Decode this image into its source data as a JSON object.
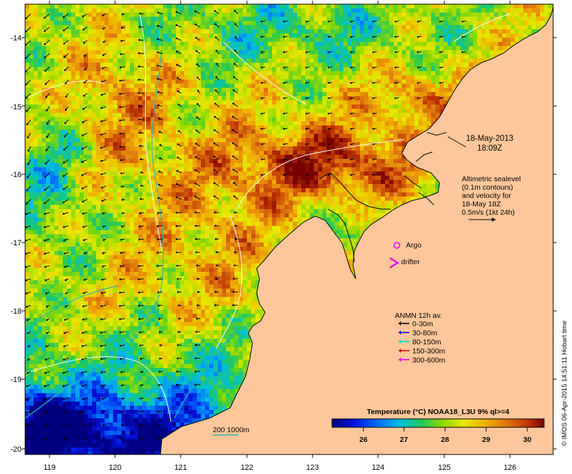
{
  "map": {
    "lon_ticks": [
      "119",
      "120",
      "121",
      "122",
      "123",
      "124",
      "125",
      "126"
    ],
    "lat_ticks": [
      "-14",
      "-15",
      "-16",
      "-17",
      "-18",
      "-19",
      "-20"
    ]
  },
  "date": {
    "line1": "18-May-2013",
    "line2": "18:09Z"
  },
  "altimetry": {
    "lines": [
      "Altimetric sealevel",
      "(0.1m contours)",
      "and velocity for",
      "18-May 18Z",
      "0.5m/s (1kt 24h)"
    ]
  },
  "markers": {
    "argo": "Argo",
    "drifter": "drifter"
  },
  "anmn": {
    "title": "ANMN 12h av.",
    "items": [
      {
        "label": "0-30m",
        "color": "#000000"
      },
      {
        "label": "30-80m",
        "color": "#0000ee"
      },
      {
        "label": "80-150m",
        "color": "#00d8d8"
      },
      {
        "label": "150-300m",
        "color": "#ee0000"
      },
      {
        "label": "300-600m",
        "color": "#ee00ee"
      }
    ]
  },
  "isobath": {
    "label": "200  1000m"
  },
  "colorbar": {
    "title": "Temperature (°C) NOAA18_L3U 9% ql>=4",
    "ticks": [
      "26",
      "27",
      "28",
      "29",
      "30"
    ],
    "range": [
      25,
      30.5
    ]
  },
  "credit": "© IMOS 06-Apr-2015 14:51:11 Hobart time",
  "colors": {
    "land": "#fdc79b",
    "argo": "#ee00ee",
    "drifter": "#ee00ee",
    "contour": "#ffffff",
    "isobath": "#2fb6b6"
  }
}
